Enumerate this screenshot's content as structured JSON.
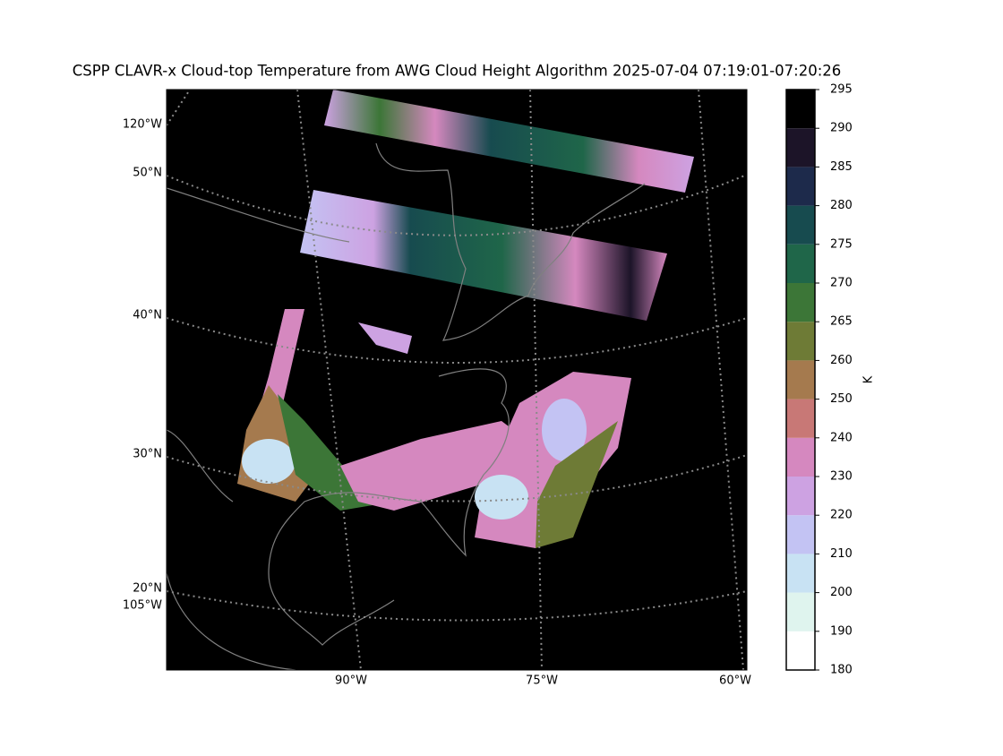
{
  "title": "CSPP CLAVR-x Cloud-top Temperature from AWG Cloud Height Algorithm 2025-07-04 07:19:01-07:20:26",
  "map": {
    "lat_labels": [
      "50°N",
      "40°N",
      "30°N",
      "20°N"
    ],
    "lon_labels_left": [
      "120°W",
      "105°W"
    ],
    "lon_labels_bottom": [
      "90°W",
      "75°W",
      "60°W"
    ]
  },
  "colorbar": {
    "label": "K",
    "ticks": [
      180,
      190,
      200,
      210,
      220,
      230,
      240,
      250,
      260,
      265,
      270,
      275,
      280,
      285,
      290,
      295
    ],
    "colors": [
      "#ffffff",
      "#dff4ee",
      "#c8e2f3",
      "#c3c3f3",
      "#cda2e2",
      "#d588bf",
      "#c87876",
      "#a57a4e",
      "#6e7b36",
      "#3c7637",
      "#1f6649",
      "#174b4f",
      "#1d2a4b",
      "#1c1428",
      "#000000"
    ]
  }
}
